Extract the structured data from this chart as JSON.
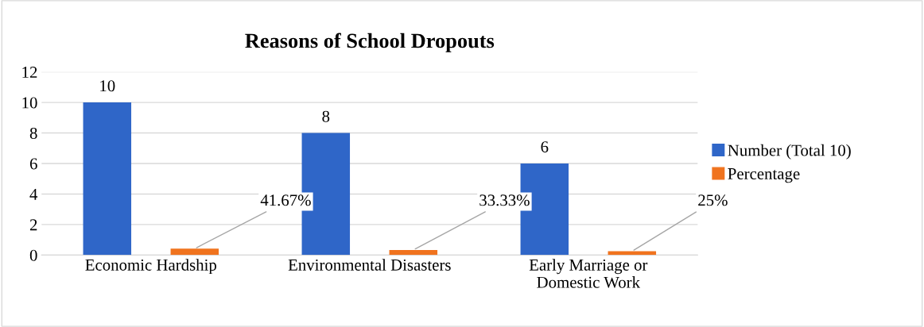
{
  "chart_data": {
    "type": "bar",
    "title": "Reasons of School Dropouts",
    "categories": [
      "Economic Hardship",
      "Environmental Disasters",
      "Early Marriage or\nDomestic Work"
    ],
    "series": [
      {
        "name": "Number (Total 10)",
        "color": "#2f66c8",
        "values": [
          10,
          8,
          6
        ],
        "value_labels": [
          "10",
          "8",
          "6"
        ]
      },
      {
        "name": "Percentage",
        "color": "#f0731e",
        "values": [
          0.4167,
          0.3333,
          0.25
        ],
        "value_labels": [
          "41.67%",
          "33.33%",
          "25%"
        ]
      }
    ],
    "ylim": [
      0,
      12
    ],
    "yticks": [
      0,
      2,
      4,
      6,
      8,
      10,
      12
    ],
    "grid": "y",
    "legend": "right"
  }
}
